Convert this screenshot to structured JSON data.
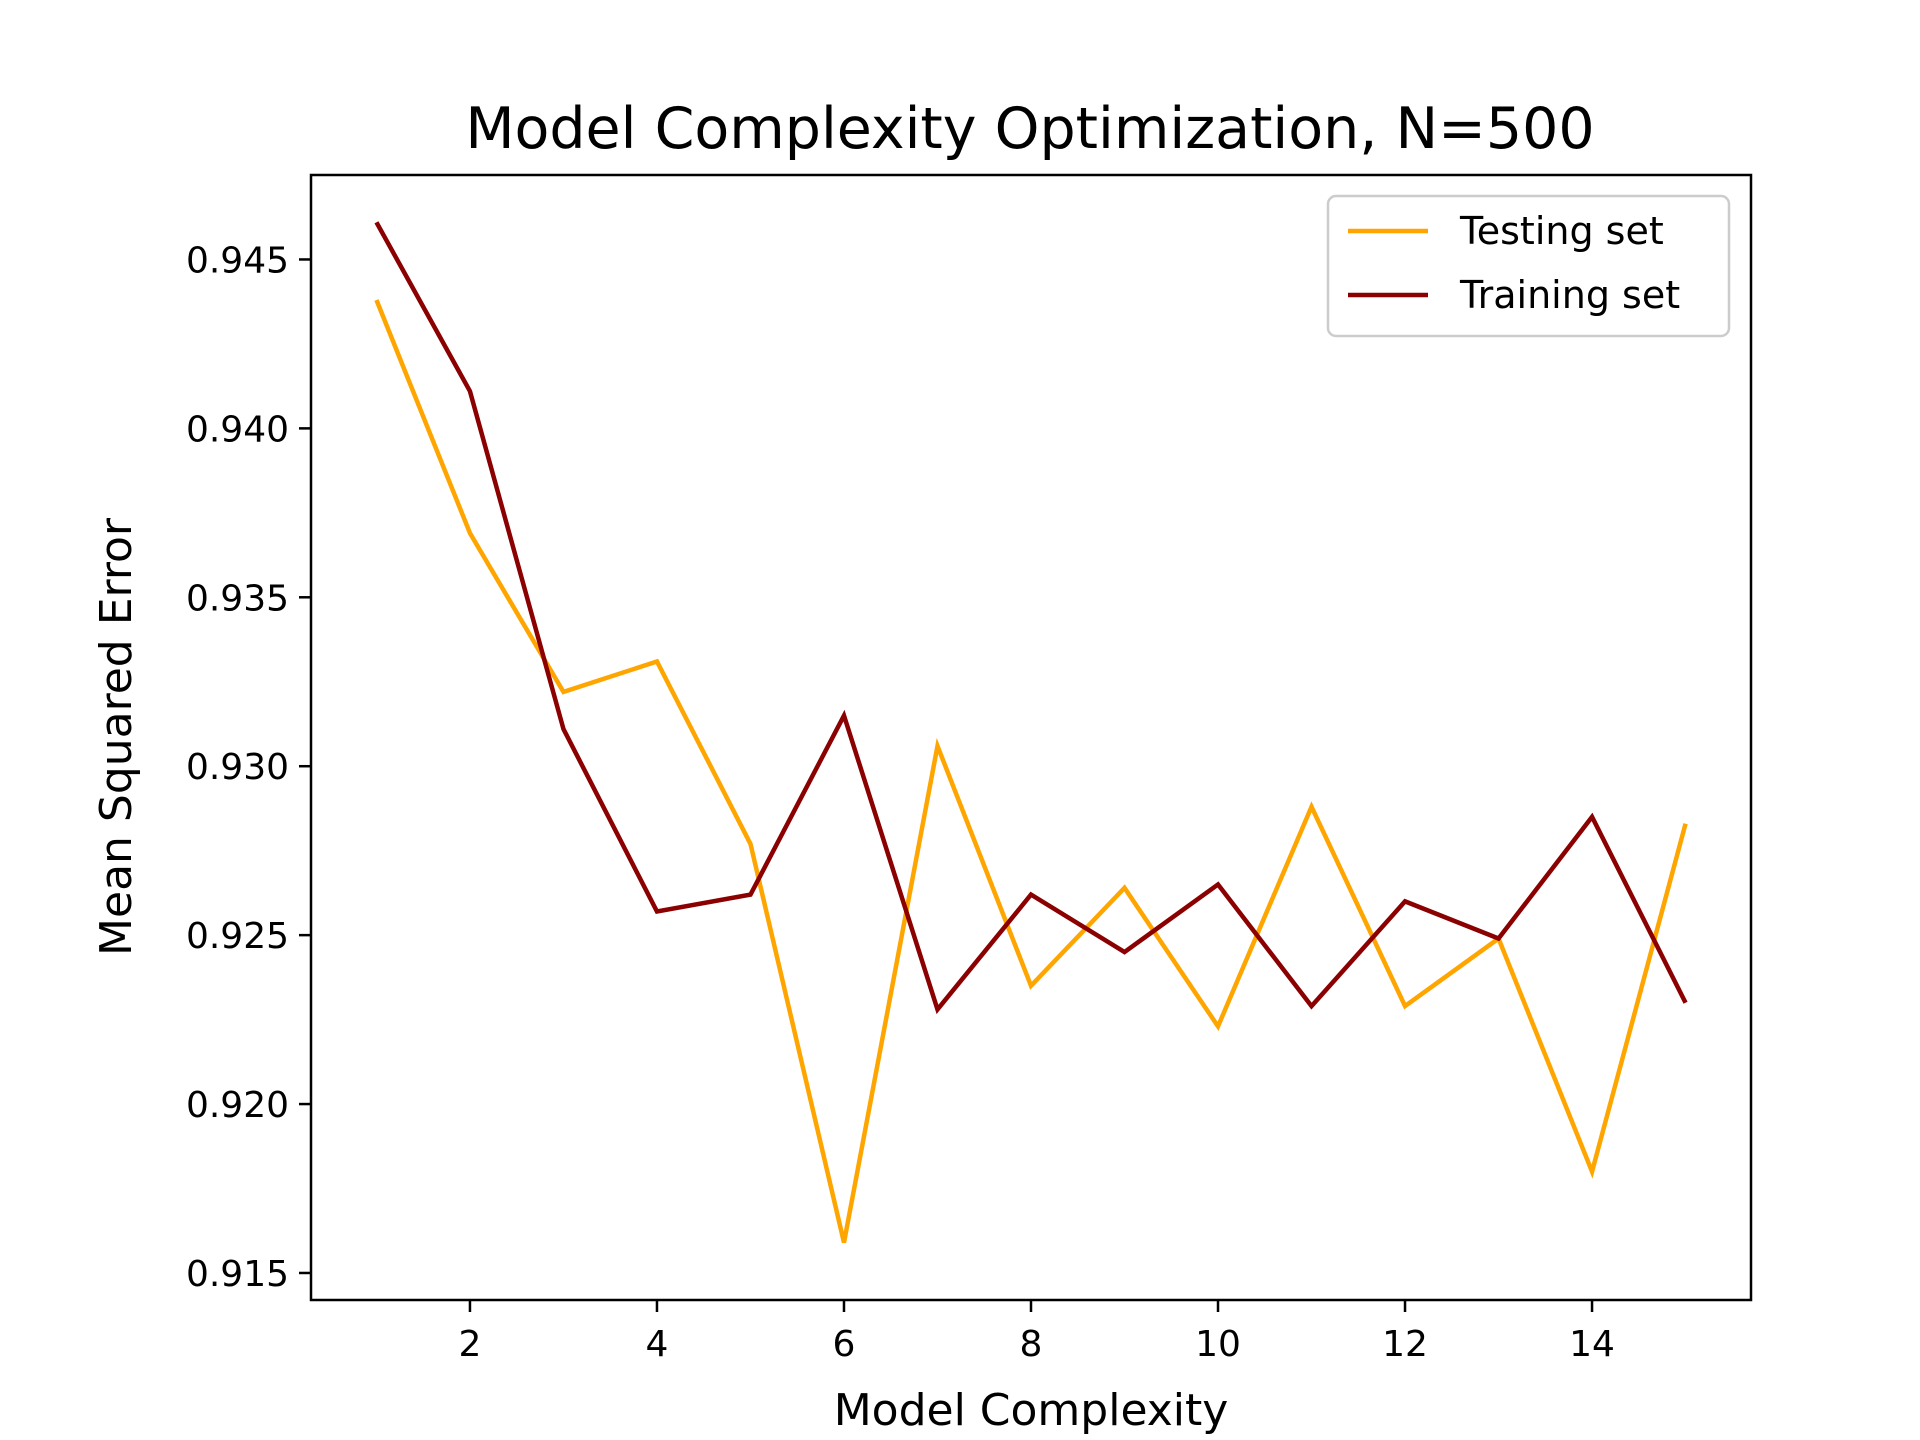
{
  "chart_data": {
    "type": "line",
    "title": "Model Complexity Optimization, N=500",
    "xlabel": "Model Complexity",
    "ylabel": "Mean Squared Error",
    "x": [
      1,
      2,
      3,
      4,
      5,
      6,
      7,
      8,
      9,
      10,
      11,
      12,
      13,
      14,
      15
    ],
    "xlim": [
      0.3,
      15.7
    ],
    "ylim": [
      0.9142,
      0.9475
    ],
    "x_ticks": [
      2,
      4,
      6,
      8,
      10,
      12,
      14
    ],
    "x_tick_labels": [
      "2",
      "4",
      "6",
      "8",
      "10",
      "12",
      "14"
    ],
    "y_ticks": [
      0.915,
      0.92,
      0.925,
      0.93,
      0.935,
      0.94,
      0.945
    ],
    "y_tick_labels": [
      "0.915",
      "0.920",
      "0.925",
      "0.930",
      "0.935",
      "0.940",
      "0.945"
    ],
    "grid": false,
    "legend_position": "top-right",
    "series": [
      {
        "name": "Testing set",
        "color": "#FFA500",
        "values": [
          0.9438,
          0.9369,
          0.9322,
          0.9331,
          0.9277,
          0.9159,
          0.9306,
          0.9235,
          0.9264,
          0.9223,
          0.9288,
          0.9229,
          0.9249,
          0.918,
          0.9283
        ]
      },
      {
        "name": "Training set",
        "color": "#8B0000",
        "values": [
          0.9461,
          0.9411,
          0.9311,
          0.9257,
          0.9262,
          0.9315,
          0.9228,
          0.9262,
          0.9245,
          0.9265,
          0.9229,
          0.926,
          0.9249,
          0.9285,
          0.923
        ]
      }
    ]
  }
}
